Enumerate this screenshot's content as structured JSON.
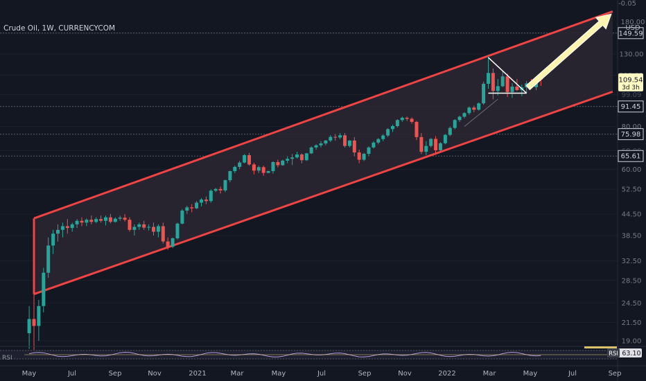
{
  "header": {
    "title": "Crude Oil, 1W, CURRENCYCOM",
    "top_tick": "-0.05",
    "currency": "USD",
    "partial_tick": "180.00"
  },
  "price_axis": {
    "ticks": [
      "130.00",
      "80.00",
      "60.00",
      "52.50",
      "44.50",
      "38.50",
      "32.50",
      "28.50",
      "24.50",
      "21.50",
      "19.00"
    ],
    "partial_ticks": [
      "112.81",
      "99.09",
      "68.00"
    ],
    "horizontal_levels": [
      149.59,
      91.45,
      75.98,
      65.61
    ],
    "last_price": "109.54",
    "countdown": "3d 3h"
  },
  "time_axis": {
    "labels": [
      "May",
      "Jul",
      "Sep",
      "Nov",
      "2021",
      "Mar",
      "May",
      "Jul",
      "Sep",
      "Nov",
      "2022",
      "Mar",
      "May",
      "Jul",
      "Sep"
    ]
  },
  "rsi": {
    "label": "RSI",
    "badge_label": "RSI",
    "value": "63.10"
  },
  "colors": {
    "background": "#131722",
    "up": "#26a69a",
    "down": "#ef5350",
    "channel": "#ef4444",
    "channel_fill": "#2b2631",
    "arrow": "#fff3b0",
    "last_price_bg": "#fff9c4",
    "level_line": "#5d606b"
  },
  "chart_data": {
    "type": "candlestick",
    "title": "Crude Oil, 1W, CURRENCYCOM",
    "price_scale": "log",
    "x_axis": {
      "type": "date",
      "start": "2020-04-13",
      "end": "2022-09-05",
      "weeks": 126
    },
    "y_axis_ticks": [
      19,
      21.5,
      24.5,
      28.5,
      32.5,
      38.5,
      44.5,
      52.5,
      60,
      68,
      80,
      99.09,
      112.81,
      130,
      149.59,
      180
    ],
    "last_price": 109.54,
    "candles": [
      [
        4,
        20,
        24,
        18,
        22
      ],
      [
        5,
        22,
        26,
        17.5,
        21
      ],
      [
        6,
        21,
        25,
        19,
        24
      ],
      [
        7,
        24,
        31,
        23,
        30
      ],
      [
        8,
        30,
        38,
        29,
        36
      ],
      [
        9,
        36,
        40,
        34,
        39
      ],
      [
        10,
        39,
        41.5,
        37,
        40
      ],
      [
        11,
        40,
        42,
        38,
        41
      ],
      [
        12,
        41,
        43,
        39,
        40.5
      ],
      [
        13,
        40.5,
        42,
        39.5,
        41.5
      ],
      [
        14,
        41.5,
        43,
        40.5,
        42.5
      ],
      [
        15,
        42.5,
        43.5,
        41,
        42
      ],
      [
        16,
        42,
        43.2,
        41,
        42.8
      ],
      [
        17,
        42.8,
        44,
        41.5,
        42.2
      ],
      [
        18,
        42.2,
        43.5,
        41.8,
        43
      ],
      [
        19,
        43,
        44,
        42,
        42.5
      ],
      [
        20,
        42.5,
        44,
        41.2,
        43.5
      ],
      [
        21,
        43.5,
        44.5,
        41.8,
        42.2
      ],
      [
        22,
        42.2,
        43.5,
        42,
        43.1
      ],
      [
        23,
        43.1,
        44,
        42.5,
        43.4
      ],
      [
        24,
        43.4,
        44.4,
        42.3,
        42.8
      ],
      [
        25,
        42.8,
        43.5,
        39.5,
        40
      ],
      [
        26,
        40,
        41.5,
        38.5,
        40.8
      ],
      [
        27,
        40.8,
        42,
        40,
        41.5
      ],
      [
        28,
        41.5,
        42.5,
        40,
        40.6
      ],
      [
        29,
        40.6,
        41.5,
        39.8,
        40.8
      ],
      [
        30,
        40.8,
        42,
        38.5,
        39.5
      ],
      [
        31,
        39.5,
        41.5,
        38,
        41
      ],
      [
        32,
        41,
        42,
        36.5,
        37
      ],
      [
        33,
        37,
        38,
        35,
        35.7
      ],
      [
        34,
        35.7,
        38,
        35.4,
        37.8
      ],
      [
        35,
        37.8,
        42,
        37.5,
        41.7
      ],
      [
        36,
        41.7,
        46,
        41.5,
        45.5
      ],
      [
        37,
        45.5,
        47,
        44.5,
        46.5
      ],
      [
        38,
        46.5,
        47.5,
        45,
        46.2
      ],
      [
        39,
        46.2,
        48.5,
        46,
        48
      ],
      [
        40,
        48,
        49.5,
        46.8,
        49
      ],
      [
        41,
        49,
        50,
        47.5,
        48.5
      ],
      [
        42,
        48.5,
        52.5,
        48,
        52
      ],
      [
        43,
        52,
        53,
        51.5,
        52.6
      ],
      [
        44,
        52.6,
        53.5,
        51,
        52.1
      ],
      [
        45,
        52.1,
        56,
        51.5,
        55.8
      ],
      [
        46,
        55.8,
        59.5,
        55,
        59.3
      ],
      [
        47,
        59.3,
        61.5,
        58.5,
        61
      ],
      [
        48,
        61,
        63.5,
        60,
        62.8
      ],
      [
        49,
        62.8,
        66.5,
        62.5,
        66
      ],
      [
        50,
        66,
        67,
        61.5,
        62
      ],
      [
        51,
        62,
        62.7,
        58,
        59.5
      ],
      [
        52,
        59.5,
        61.5,
        58.5,
        60.9
      ],
      [
        53,
        60.9,
        61.5,
        57.5,
        58.6
      ],
      [
        54,
        58.6,
        59.5,
        58.5,
        59.3
      ],
      [
        55,
        59.3,
        63.3,
        58.3,
        63
      ],
      [
        56,
        63,
        64,
        60.8,
        61.7
      ],
      [
        57,
        61.7,
        64,
        61.5,
        63.6
      ],
      [
        58,
        63.6,
        65.5,
        62.5,
        64.4
      ],
      [
        59,
        64.4,
        66.5,
        61.8,
        65
      ],
      [
        60,
        65,
        67.5,
        64.5,
        66.3
      ],
      [
        61,
        66.3,
        66.8,
        62.5,
        63.8
      ],
      [
        62,
        63.8,
        67,
        63.5,
        66.8
      ],
      [
        63,
        66.8,
        70,
        66.5,
        69.5
      ],
      [
        64,
        69.5,
        71,
        68.5,
        70.5
      ],
      [
        65,
        70.5,
        72.5,
        69.5,
        71.4
      ],
      [
        66,
        71.4,
        73,
        70.5,
        72.8
      ],
      [
        67,
        72.8,
        75.5,
        72,
        74.6
      ],
      [
        68,
        74.6,
        76,
        72.8,
        74.3
      ],
      [
        69,
        74.3,
        76.5,
        73.5,
        75.4
      ],
      [
        70,
        75.4,
        76.5,
        69.5,
        70.2
      ],
      [
        71,
        70.2,
        73,
        69.5,
        72.8
      ],
      [
        72,
        72.8,
        74.5,
        65.5,
        67.2
      ],
      [
        73,
        67.2,
        68.5,
        62.5,
        64
      ],
      [
        74,
        64,
        67,
        63.5,
        66.6
      ],
      [
        75,
        66.6,
        70,
        65.5,
        69.5
      ],
      [
        76,
        69.5,
        72.5,
        69,
        71.8
      ],
      [
        77,
        71.8,
        74,
        71,
        73.5
      ],
      [
        78,
        73.5,
        76,
        72.5,
        75.3
      ],
      [
        79,
        75.3,
        79,
        74.5,
        78.6
      ],
      [
        80,
        78.6,
        81,
        77,
        80.2
      ],
      [
        81,
        80.2,
        84,
        79.5,
        83.5
      ],
      [
        82,
        83.5,
        85.5,
        82.5,
        84.8
      ],
      [
        83,
        84.8,
        85.5,
        83,
        84.2
      ],
      [
        84,
        84.2,
        85,
        81.5,
        82.5
      ],
      [
        85,
        82.5,
        83,
        73,
        74.5
      ],
      [
        86,
        74.5,
        76.5,
        66.5,
        67.5
      ],
      [
        87,
        67.5,
        72.5,
        66,
        70.2
      ],
      [
        88,
        70.2,
        74,
        69.5,
        73.6
      ],
      [
        89,
        73.6,
        75,
        67,
        68.2
      ],
      [
        90,
        68.2,
        72,
        67.5,
        71.5
      ],
      [
        91,
        71.5,
        76,
        71,
        75.6
      ],
      [
        92,
        75.6,
        80,
        75,
        79.2
      ],
      [
        93,
        79.2,
        84,
        78.5,
        83.5
      ],
      [
        94,
        83.5,
        86,
        82.5,
        85.4
      ],
      [
        95,
        85.4,
        88,
        84.5,
        87.5
      ],
      [
        96,
        87.5,
        91.5,
        86.5,
        90.8
      ],
      [
        97,
        90.8,
        92,
        88,
        89.5
      ],
      [
        98,
        89.5,
        94,
        89,
        93.4
      ],
      [
        99,
        93.4,
        108,
        92.5,
        106.5
      ],
      [
        100,
        106.5,
        128,
        103,
        114.5
      ],
      [
        101,
        114.5,
        118,
        96,
        101.5
      ],
      [
        102,
        101.5,
        110,
        98.5,
        104.8
      ],
      [
        103,
        104.8,
        116,
        104,
        111.9
      ],
      [
        104,
        111.9,
        114,
        97.5,
        100.8
      ],
      [
        105,
        100.8,
        107,
        97,
        104.5
      ],
      [
        106,
        104.5,
        110,
        101.5,
        102.1
      ],
      [
        107,
        102.1,
        106,
        98,
        104
      ],
      [
        108,
        104,
        108.5,
        100,
        106.8
      ],
      [
        109,
        106.8,
        110,
        103,
        104.1
      ],
      [
        110,
        104.1,
        112,
        102,
        110.2
      ],
      [
        111,
        110.2,
        113,
        105,
        109.54
      ]
    ],
    "channel": {
      "upper": [
        [
          5,
          43.2
        ],
        [
          126,
          173
        ]
      ],
      "lower": [
        [
          5,
          26
        ],
        [
          126,
          101
        ]
      ]
    },
    "triangle": [
      [
        100,
        127
      ],
      [
        108,
        100
      ],
      [
        100,
        100
      ]
    ],
    "arrow_target": [
      126,
      170
    ]
  }
}
